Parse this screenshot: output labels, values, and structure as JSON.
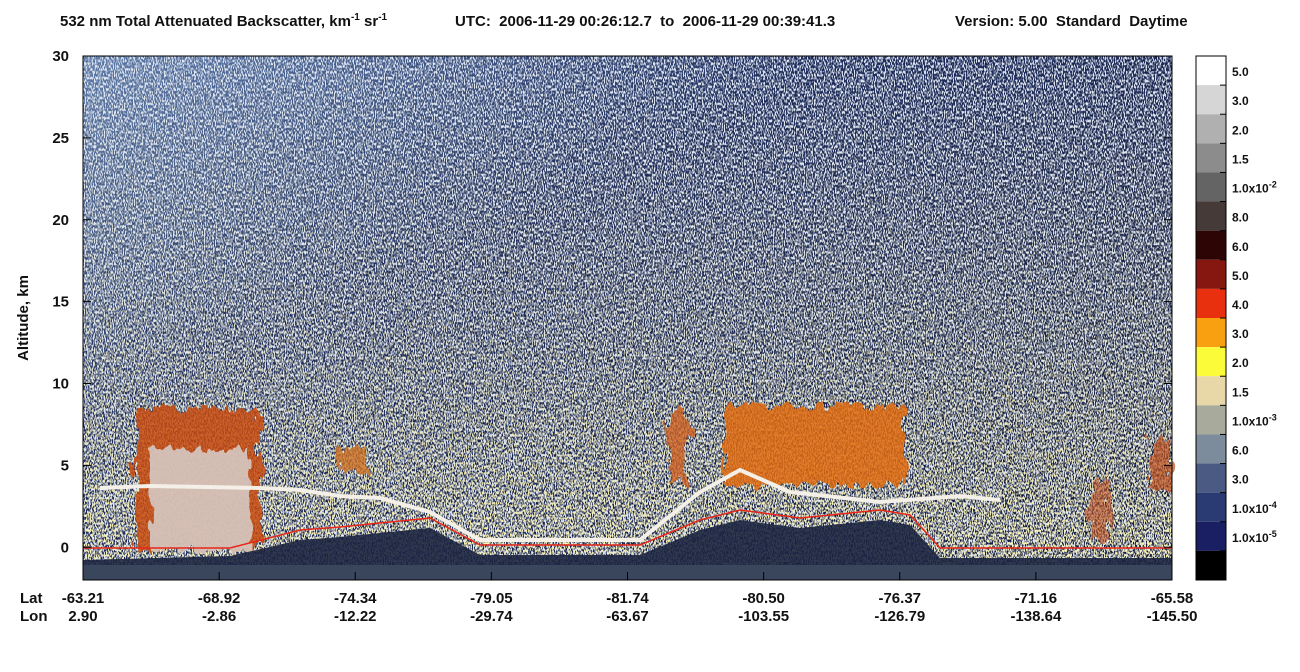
{
  "chart_data": {
    "type": "heatmap",
    "title": [
      "532 nm Total Attenuated Backscatter, km",
      "-1",
      " sr",
      "-1"
    ],
    "utc": "UTC:  2006-11-29 00:26:12.7  to  2006-11-29 00:39:41.3",
    "version": "Version: 5.00  Standard  Daytime",
    "ylabel": "Altitude, km",
    "ylim": [
      -2,
      30
    ],
    "yticks": [
      0,
      5,
      10,
      15,
      20,
      25,
      30
    ],
    "x_rows": [
      {
        "name": "Lat",
        "labels": [
          "-63.21",
          "-68.92",
          "-74.34",
          "-79.05",
          "-81.74",
          "-80.50",
          "-76.37",
          "-71.16",
          "-65.58"
        ]
      },
      {
        "name": "Lon",
        "labels": [
          "2.90",
          "-2.86",
          "-12.22",
          "-29.74",
          "-63.67",
          "-103.55",
          "-126.79",
          "-138.64",
          "-145.50"
        ]
      }
    ],
    "colorbar": {
      "colors": [
        "#ffffff",
        "#d6d6d6",
        "#b0b0b0",
        "#8c8c8c",
        "#646464",
        "#453a37",
        "#2e0505",
        "#861610",
        "#e8300e",
        "#f8a010",
        "#fbfb3a",
        "#e8d8a8",
        "#a8aa9c",
        "#7c8c9c",
        "#4a5a82",
        "#2a3a72",
        "#1a1e62",
        "#000000"
      ],
      "labels": [
        {
          "text": "5.0"
        },
        {
          "text": "3.0"
        },
        {
          "text": "2.0"
        },
        {
          "text": "1.5"
        },
        {
          "text": "1.0x10",
          "sup": "-2"
        },
        {
          "text": "8.0"
        },
        {
          "text": "6.0"
        },
        {
          "text": "5.0"
        },
        {
          "text": "4.0"
        },
        {
          "text": "3.0"
        },
        {
          "text": "2.0"
        },
        {
          "text": "1.5"
        },
        {
          "text": "1.0x10",
          "sup": "-3"
        },
        {
          "text": "6.0"
        },
        {
          "text": "3.0"
        },
        {
          "text": "1.0x10",
          "sup": "-4"
        },
        {
          "text": "1.0x10",
          "sup": "-5"
        }
      ]
    }
  }
}
